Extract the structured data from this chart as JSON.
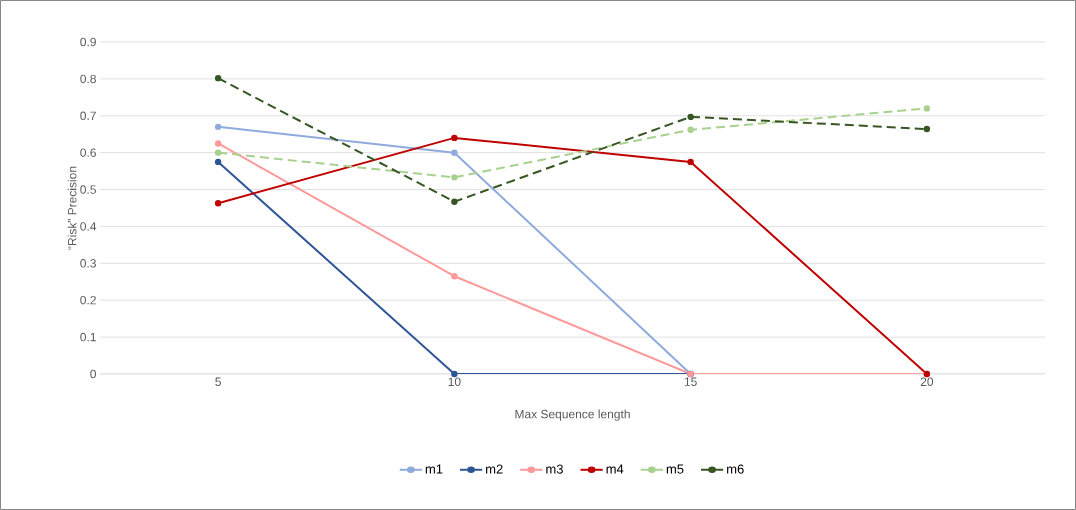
{
  "chart_data": {
    "type": "line",
    "xlabel": "Max Sequence length",
    "ylabel": "“Risk” Precision",
    "categories": [
      "5",
      "10",
      "15",
      "20"
    ],
    "series": [
      {
        "name": "m1",
        "color": "#8faadc",
        "values": [
          0.67,
          0.6,
          0,
          null
        ]
      },
      {
        "name": "m2",
        "color": "#2f5597",
        "values": [
          0.575,
          0,
          0,
          null
        ]
      },
      {
        "name": "m3",
        "color": "#ff9999",
        "values": [
          0.625,
          0.265,
          0,
          0
        ]
      },
      {
        "name": "m4",
        "color": "#c00000",
        "values": [
          0.463,
          0.64,
          0.575,
          0
        ]
      },
      {
        "name": "m5",
        "color": "#a9d18e",
        "line_style": "dashed",
        "values": [
          0.6,
          0.533,
          0.662,
          0.72
        ]
      },
      {
        "name": "m6",
        "color": "#375623",
        "line_style": "dashed",
        "values": [
          0.802,
          0.467,
          0.697,
          0.664
        ]
      }
    ],
    "ylim": [
      0,
      0.9
    ],
    "yticks": [
      0,
      0.1,
      0.2,
      0.3,
      0.4,
      0.5,
      0.6,
      0.7,
      0.8,
      0.9
    ],
    "grid": "y",
    "legend": "bottom",
    "marker": "circle"
  }
}
